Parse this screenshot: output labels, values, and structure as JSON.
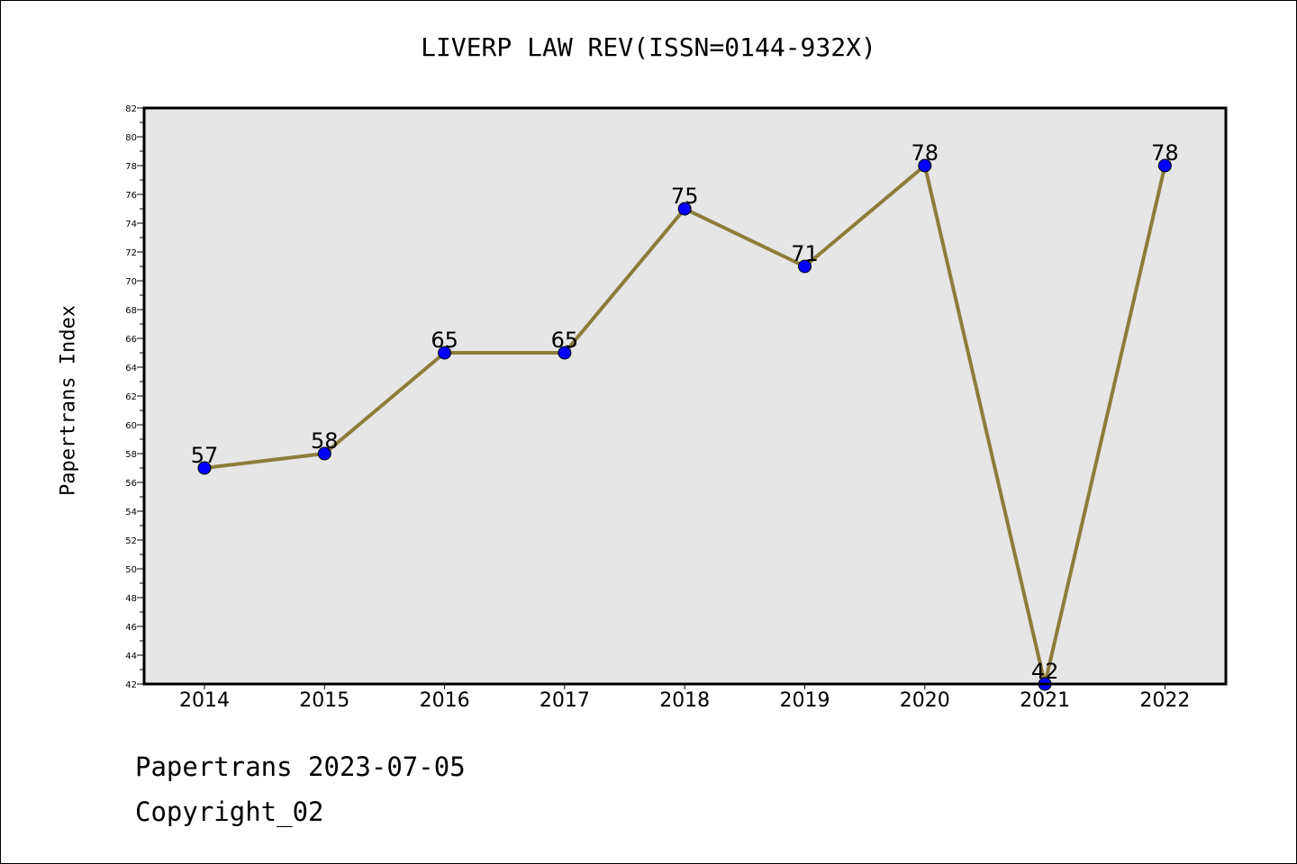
{
  "chart_data": {
    "type": "line",
    "title": "LIVERP LAW REV(ISSN=0144-932X)",
    "xlabel": "",
    "ylabel": "Papertrans Index",
    "categories": [
      "2014",
      "2015",
      "2016",
      "2017",
      "2018",
      "2019",
      "2020",
      "2021",
      "2022"
    ],
    "series": [
      {
        "values": [
          57,
          58,
          65,
          65,
          75,
          71,
          78,
          42,
          78
        ],
        "line_color": "#8b7d3a",
        "marker_color": "#0000ff"
      }
    ],
    "ylim": [
      42,
      82
    ],
    "yticks": [
      "42",
      "44",
      "46",
      "48",
      "50",
      "52",
      "54",
      "56",
      "58",
      "60",
      "62",
      "64",
      "66",
      "68",
      "70",
      "72",
      "74",
      "76",
      "78",
      "80",
      "82"
    ],
    "grid": false,
    "plot_background": "#e6e6e6",
    "data_labels": true
  },
  "footer": {
    "date_line": "Papertrans 2023-07-05",
    "copyright": "Copyright_02"
  }
}
